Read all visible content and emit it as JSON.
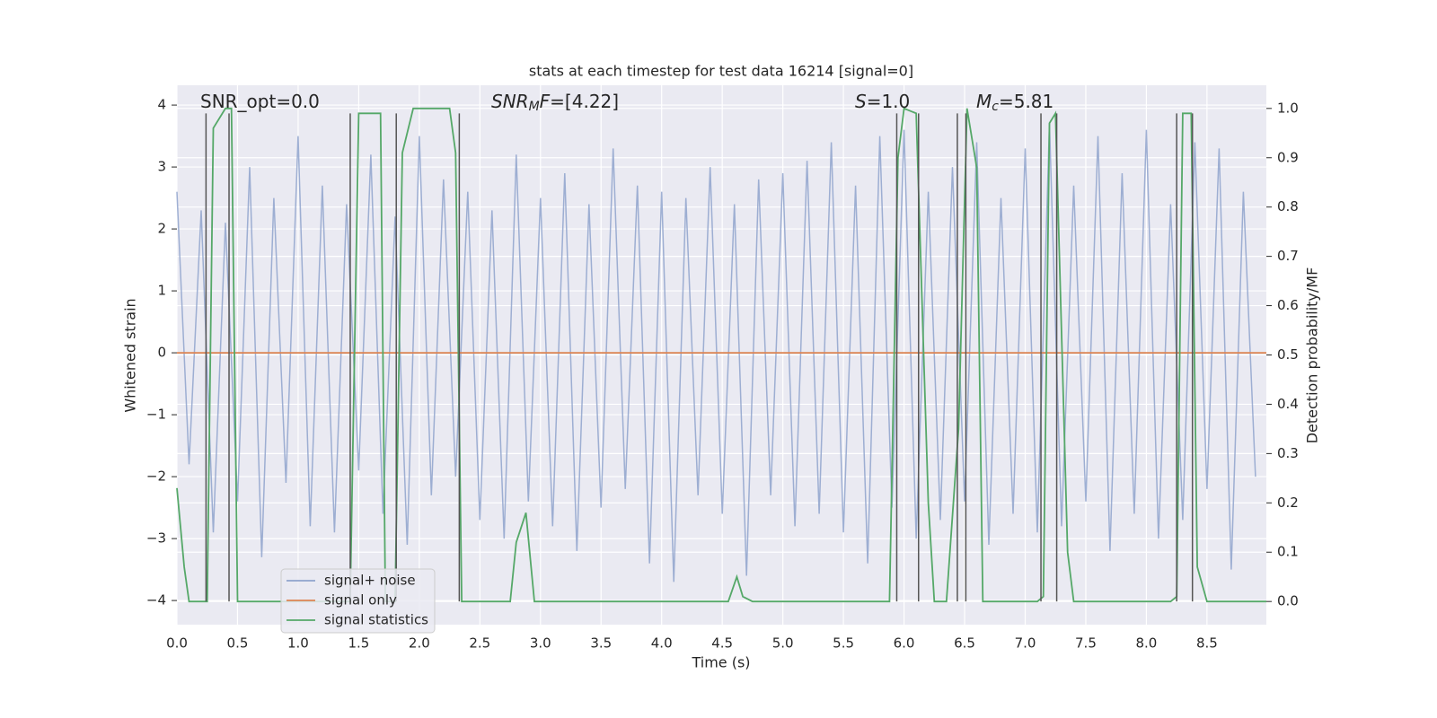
{
  "chart_data": {
    "type": "line",
    "title": "stats at each timestep for test data 16214 [signal=0]",
    "x_label": "Time (s)",
    "y_label": "Whitened strain",
    "y2_label": "Detection probability/MF",
    "xlim": [
      0,
      8.99
    ],
    "ylim": [
      -4.39,
      4.32
    ],
    "y2lim": [
      -0.047,
      1.047
    ],
    "xticks": [
      {
        "value": 0,
        "label": "0.0"
      },
      {
        "value": 0.5,
        "label": "0.5"
      },
      {
        "value": 1,
        "label": "1.0"
      },
      {
        "value": 1.5,
        "label": "1.5"
      },
      {
        "value": 2,
        "label": "2.0"
      },
      {
        "value": 2.5,
        "label": "2.5"
      },
      {
        "value": 3,
        "label": "3.0"
      },
      {
        "value": 3.5,
        "label": "3.5"
      },
      {
        "value": 4,
        "label": "4.0"
      },
      {
        "value": 4.5,
        "label": "4.5"
      },
      {
        "value": 5,
        "label": "5.0"
      },
      {
        "value": 5.5,
        "label": "5.5"
      },
      {
        "value": 6,
        "label": "6.0"
      },
      {
        "value": 6.5,
        "label": "6.5"
      },
      {
        "value": 7,
        "label": "7.0"
      },
      {
        "value": 7.5,
        "label": "7.5"
      },
      {
        "value": 8,
        "label": "8.0"
      },
      {
        "value": 8.5,
        "label": "8.5"
      }
    ],
    "yticks": [
      {
        "value": -4,
        "label": "−4"
      },
      {
        "value": -3,
        "label": "−3"
      },
      {
        "value": -2,
        "label": "−2"
      },
      {
        "value": -1,
        "label": "−1"
      },
      0,
      1,
      2,
      3,
      4
    ],
    "y2ticks": [
      {
        "value": 0,
        "label": "0.0"
      },
      {
        "value": 0.1,
        "label": "0.1"
      },
      {
        "value": 0.2,
        "label": "0.2"
      },
      {
        "value": 0.3,
        "label": "0.3"
      },
      {
        "value": 0.4,
        "label": "0.4"
      },
      {
        "value": 0.5,
        "label": "0.5"
      },
      {
        "value": 0.6,
        "label": "0.6"
      },
      {
        "value": 0.7,
        "label": "0.7"
      },
      {
        "value": 0.8,
        "label": "0.8"
      },
      {
        "value": 0.9,
        "label": "0.9"
      },
      {
        "value": 1,
        "label": "1.0"
      }
    ],
    "grid": true,
    "legend": "lower left",
    "series": [
      {
        "name": "signal+ noise",
        "color": "#8fa3cc",
        "x": [
          0,
          0.1,
          0.2,
          0.3,
          0.4,
          0.5,
          0.6,
          0.7,
          0.8,
          0.9,
          1,
          1.1,
          1.2,
          1.3,
          1.4,
          1.5,
          1.6,
          1.7,
          1.8,
          1.9,
          2,
          2.1,
          2.2,
          2.3,
          2.4,
          2.5,
          2.6,
          2.7,
          2.8,
          2.9,
          3,
          3.1,
          3.2,
          3.3,
          3.4,
          3.5,
          3.6,
          3.7,
          3.8,
          3.9,
          4,
          4.1,
          4.2,
          4.3,
          4.4,
          4.5,
          4.6,
          4.7,
          4.8,
          4.9,
          5,
          5.1,
          5.2,
          5.3,
          5.4,
          5.5,
          5.6,
          5.7,
          5.8,
          5.9,
          6,
          6.1,
          6.2,
          6.3,
          6.4,
          6.5,
          6.6,
          6.7,
          6.8,
          6.9,
          7,
          7.1,
          7.2,
          7.3,
          7.4,
          7.5,
          7.6,
          7.7,
          7.8,
          7.9,
          8,
          8.1,
          8.2,
          8.3,
          8.4,
          8.5,
          8.6,
          8.7,
          8.8,
          8.9
        ],
        "values": [
          2.6,
          -1.8,
          2.3,
          -2.9,
          2.1,
          -2.4,
          3.0,
          -3.3,
          2.5,
          -2.1,
          3.5,
          -2.8,
          2.7,
          -2.9,
          2.4,
          -1.9,
          3.2,
          -2.6,
          2.2,
          -3.1,
          3.5,
          -2.3,
          2.8,
          -2.0,
          2.6,
          -2.7,
          2.3,
          -3.0,
          3.2,
          -2.4,
          2.5,
          -2.8,
          2.9,
          -3.2,
          2.4,
          -2.5,
          3.3,
          -2.2,
          2.7,
          -3.4,
          2.6,
          -3.7,
          2.5,
          -2.3,
          3.0,
          -2.6,
          2.4,
          -3.6,
          2.8,
          -2.3,
          2.9,
          -2.8,
          3.1,
          -2.6,
          3.4,
          -2.9,
          2.7,
          -3.4,
          3.5,
          -2.5,
          3.6,
          -3.0,
          2.6,
          -2.7,
          3.0,
          -2.4,
          3.4,
          -3.1,
          2.5,
          -2.6,
          3.3,
          -2.9,
          3.7,
          -2.8,
          2.7,
          -2.4,
          3.5,
          -3.2,
          2.9,
          -2.6,
          3.6,
          -3.0,
          2.4,
          -2.7,
          3.4,
          -2.2,
          3.3,
          -3.5,
          2.6,
          -2.0
        ]
      },
      {
        "name": "signal only",
        "color": "#dd8452",
        "x": [
          0,
          8.99
        ],
        "values": [
          0,
          0
        ]
      },
      {
        "name": "signal statistics",
        "color": "#55a868",
        "axis": "y2",
        "x": [
          0,
          0.06,
          0.1,
          0.25,
          0.3,
          0.4,
          0.45,
          0.5,
          1.43,
          1.5,
          1.68,
          1.72,
          1.8,
          1.86,
          1.95,
          2.25,
          2.3,
          2.35,
          2.75,
          2.8,
          2.88,
          2.95,
          4.55,
          4.62,
          4.67,
          4.75,
          5.88,
          5.95,
          6.0,
          6.1,
          6.2,
          6.25,
          6.35,
          6.45,
          6.52,
          6.6,
          6.65,
          7.1,
          7.15,
          7.2,
          7.25,
          7.35,
          7.4,
          8.2,
          8.25,
          8.3,
          8.37,
          8.42,
          8.5,
          8.99
        ],
        "values": [
          0.23,
          0.07,
          0,
          0,
          0.96,
          1.0,
          1.0,
          0,
          0,
          0.99,
          0.99,
          0,
          0,
          0.91,
          1.0,
          1.0,
          0.91,
          0,
          0,
          0.12,
          0.18,
          0,
          0,
          0.05,
          0.01,
          0,
          0,
          0.9,
          1.0,
          0.99,
          0.2,
          0,
          0,
          0.35,
          1.0,
          0.88,
          0,
          0,
          0.01,
          0.97,
          0.99,
          0.1,
          0,
          0,
          0.01,
          0.99,
          0.99,
          0.07,
          0,
          0
        ]
      }
    ],
    "vlines": {
      "color": "#555555",
      "range": [
        0,
        0.99
      ],
      "x": [
        0.24,
        0.43,
        1.43,
        1.81,
        2.33,
        5.94,
        6.12,
        6.44,
        6.51,
        7.13,
        7.26,
        8.25,
        8.38
      ]
    },
    "annotations": [
      {
        "parts": [
          "SNR_opt=0.0"
        ]
      },
      {
        "parts": [
          "SNR",
          "M",
          "F",
          "=[4.22]"
        ]
      },
      {
        "parts": [
          "S",
          "=1.0"
        ]
      },
      {
        "parts": [
          "M",
          "c",
          "=5.81"
        ]
      }
    ]
  }
}
